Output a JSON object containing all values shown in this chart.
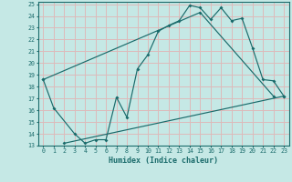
{
  "xlabel": "Humidex (Indice chaleur)",
  "bg_color": "#c5e8e5",
  "grid_color": "#ddbaba",
  "line_color": "#1a6b6b",
  "xlim": [
    -0.5,
    23.5
  ],
  "ylim": [
    13,
    25.2
  ],
  "xticks": [
    0,
    1,
    2,
    3,
    4,
    5,
    6,
    7,
    8,
    9,
    10,
    11,
    12,
    13,
    14,
    15,
    16,
    17,
    18,
    19,
    20,
    21,
    22,
    23
  ],
  "yticks": [
    13,
    14,
    15,
    16,
    17,
    18,
    19,
    20,
    21,
    22,
    23,
    24,
    25
  ],
  "line1_x": [
    0,
    1,
    3,
    4,
    5,
    6,
    7,
    8,
    9,
    10,
    11,
    12,
    13,
    14,
    15,
    16,
    17,
    18,
    19,
    20,
    21,
    22,
    23
  ],
  "line1_y": [
    18.6,
    16.2,
    14.0,
    13.2,
    13.5,
    13.5,
    17.1,
    15.4,
    19.5,
    20.7,
    22.7,
    23.2,
    23.6,
    24.9,
    24.7,
    23.7,
    24.7,
    23.6,
    23.8,
    21.3,
    18.6,
    18.5,
    17.2
  ],
  "line2_x": [
    2,
    23
  ],
  "line2_y": [
    13.2,
    17.2
  ],
  "line3_x": [
    0,
    15,
    22
  ],
  "line3_y": [
    18.6,
    24.3,
    17.2
  ]
}
